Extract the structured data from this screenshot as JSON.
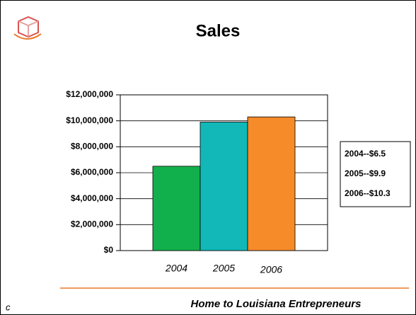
{
  "chart_data": {
    "type": "bar",
    "title": "Sales",
    "categories": [
      "2004",
      "2005",
      "2006"
    ],
    "values": [
      6500000,
      9900000,
      10300000
    ],
    "colors": [
      "#12b04c",
      "#12b8b8",
      "#f68b2a"
    ],
    "ylim": [
      0,
      12000000
    ],
    "yticks": [
      {
        "value": 0,
        "label": "$0"
      },
      {
        "value": 2000000,
        "label": "$2,000,000"
      },
      {
        "value": 4000000,
        "label": "$4,000,000"
      },
      {
        "value": 6000000,
        "label": "$6,000,000"
      },
      {
        "value": 8000000,
        "label": "$8,000,000"
      },
      {
        "value": 10000000,
        "label": "$10,000,000"
      },
      {
        "value": 12000000,
        "label": "$12,000,000"
      }
    ],
    "grid": true,
    "legend": [
      "2004--$6.5",
      "2005--$9.9",
      "2006--$10.3"
    ],
    "footer": "Home to Louisiana Entrepreneurs",
    "corner_text": "c"
  }
}
